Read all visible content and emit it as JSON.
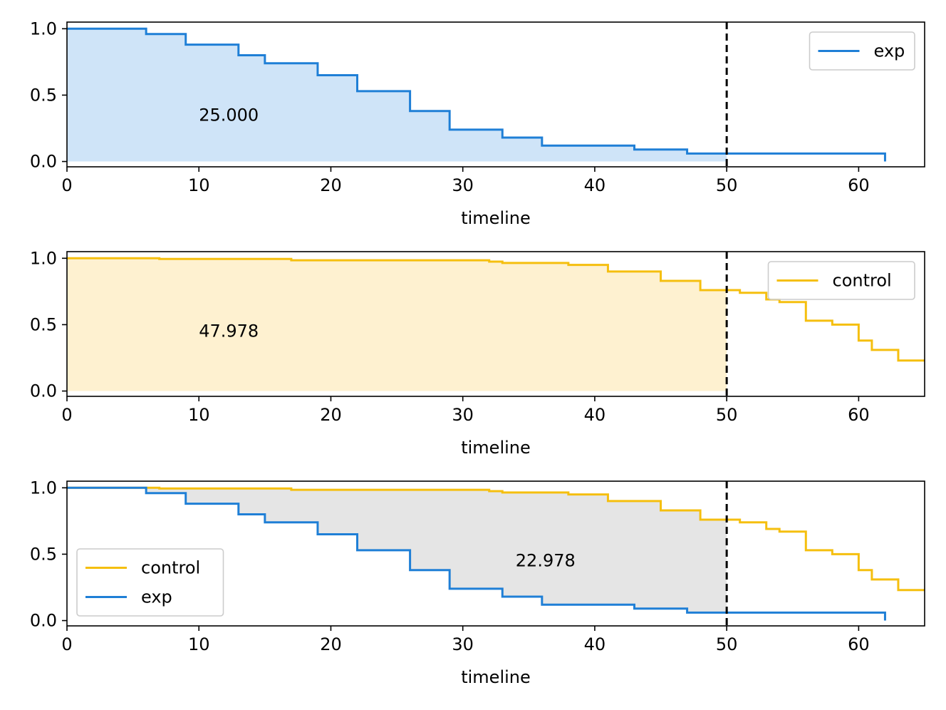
{
  "colors": {
    "exp": "#1f7fd6",
    "control": "#f5bf0f",
    "exp_fill": "#cfe4f8",
    "control_fill": "#fef1d0",
    "diff_fill": "#e5e5e5",
    "vline": "#000000"
  },
  "chart_data": [
    {
      "type": "line",
      "subtype": "step",
      "xlabel": "timeline",
      "xlim": [
        0,
        65
      ],
      "ylim": [
        -0.04,
        1.05
      ],
      "xticks": [
        0,
        10,
        20,
        30,
        40,
        50,
        60
      ],
      "yticks": [
        0.0,
        0.5,
        1.0
      ],
      "ytick_labels": [
        "0.0",
        "0.5",
        "1.0"
      ],
      "vline_x": 50,
      "fill": {
        "type": "area_under",
        "series": "exp",
        "x_end": 50,
        "color_key": "exp_fill"
      },
      "annotation": {
        "text": "25.000",
        "x": 10,
        "y": 0.35
      },
      "legend": {
        "position": "top-right",
        "entries": [
          {
            "name": "exp",
            "color_key": "exp"
          }
        ]
      },
      "series": [
        {
          "name": "exp",
          "color_key": "exp",
          "x": [
            0,
            6,
            9,
            13,
            15,
            19,
            22,
            26,
            29,
            33,
            36,
            43,
            47,
            62
          ],
          "y": [
            1.0,
            0.96,
            0.88,
            0.8,
            0.74,
            0.65,
            0.53,
            0.38,
            0.24,
            0.18,
            0.12,
            0.09,
            0.06,
            0.0
          ]
        }
      ]
    },
    {
      "type": "line",
      "subtype": "step",
      "xlabel": "timeline",
      "xlim": [
        0,
        65
      ],
      "ylim": [
        -0.04,
        1.05
      ],
      "xticks": [
        0,
        10,
        20,
        30,
        40,
        50,
        60
      ],
      "yticks": [
        0.0,
        0.5,
        1.0
      ],
      "ytick_labels": [
        "0.0",
        "0.5",
        "1.0"
      ],
      "vline_x": 50,
      "fill": {
        "type": "area_under",
        "series": "control",
        "x_end": 50,
        "color_key": "control_fill"
      },
      "annotation": {
        "text": "47.978",
        "x": 10,
        "y": 0.45
      },
      "legend": {
        "position": "top-right",
        "entries": [
          {
            "name": "control",
            "color_key": "control"
          }
        ]
      },
      "series": [
        {
          "name": "control",
          "color_key": "control",
          "x": [
            0,
            7,
            17,
            32,
            33,
            38,
            41,
            45,
            48,
            51,
            53,
            54,
            56,
            58,
            60,
            61,
            63,
            65
          ],
          "y": [
            1.0,
            0.995,
            0.985,
            0.975,
            0.965,
            0.95,
            0.9,
            0.83,
            0.76,
            0.74,
            0.69,
            0.67,
            0.53,
            0.5,
            0.38,
            0.31,
            0.23,
            0.23
          ]
        }
      ]
    },
    {
      "type": "line",
      "subtype": "step",
      "xlabel": "timeline",
      "xlim": [
        0,
        65
      ],
      "ylim": [
        -0.04,
        1.05
      ],
      "xticks": [
        0,
        10,
        20,
        30,
        40,
        50,
        60
      ],
      "yticks": [
        0.0,
        0.5,
        1.0
      ],
      "ytick_labels": [
        "0.0",
        "0.5",
        "1.0"
      ],
      "vline_x": 50,
      "fill": {
        "type": "between",
        "upper": "control",
        "lower": "exp",
        "x_end": 50,
        "color_key": "diff_fill"
      },
      "annotation": {
        "text": "22.978",
        "x": 34,
        "y": 0.45
      },
      "legend": {
        "position": "lower-left",
        "entries": [
          {
            "name": "control",
            "color_key": "control"
          },
          {
            "name": "exp",
            "color_key": "exp"
          }
        ]
      },
      "series": [
        {
          "name": "control",
          "color_key": "control",
          "x": [
            0,
            7,
            17,
            32,
            33,
            38,
            41,
            45,
            48,
            51,
            53,
            54,
            56,
            58,
            60,
            61,
            63,
            65
          ],
          "y": [
            1.0,
            0.995,
            0.985,
            0.975,
            0.965,
            0.95,
            0.9,
            0.83,
            0.76,
            0.74,
            0.69,
            0.67,
            0.53,
            0.5,
            0.38,
            0.31,
            0.23,
            0.23
          ]
        },
        {
          "name": "exp",
          "color_key": "exp",
          "x": [
            0,
            6,
            9,
            13,
            15,
            19,
            22,
            26,
            29,
            33,
            36,
            43,
            47,
            62
          ],
          "y": [
            1.0,
            0.96,
            0.88,
            0.8,
            0.74,
            0.65,
            0.53,
            0.38,
            0.24,
            0.18,
            0.12,
            0.09,
            0.06,
            0.0
          ]
        }
      ]
    }
  ]
}
